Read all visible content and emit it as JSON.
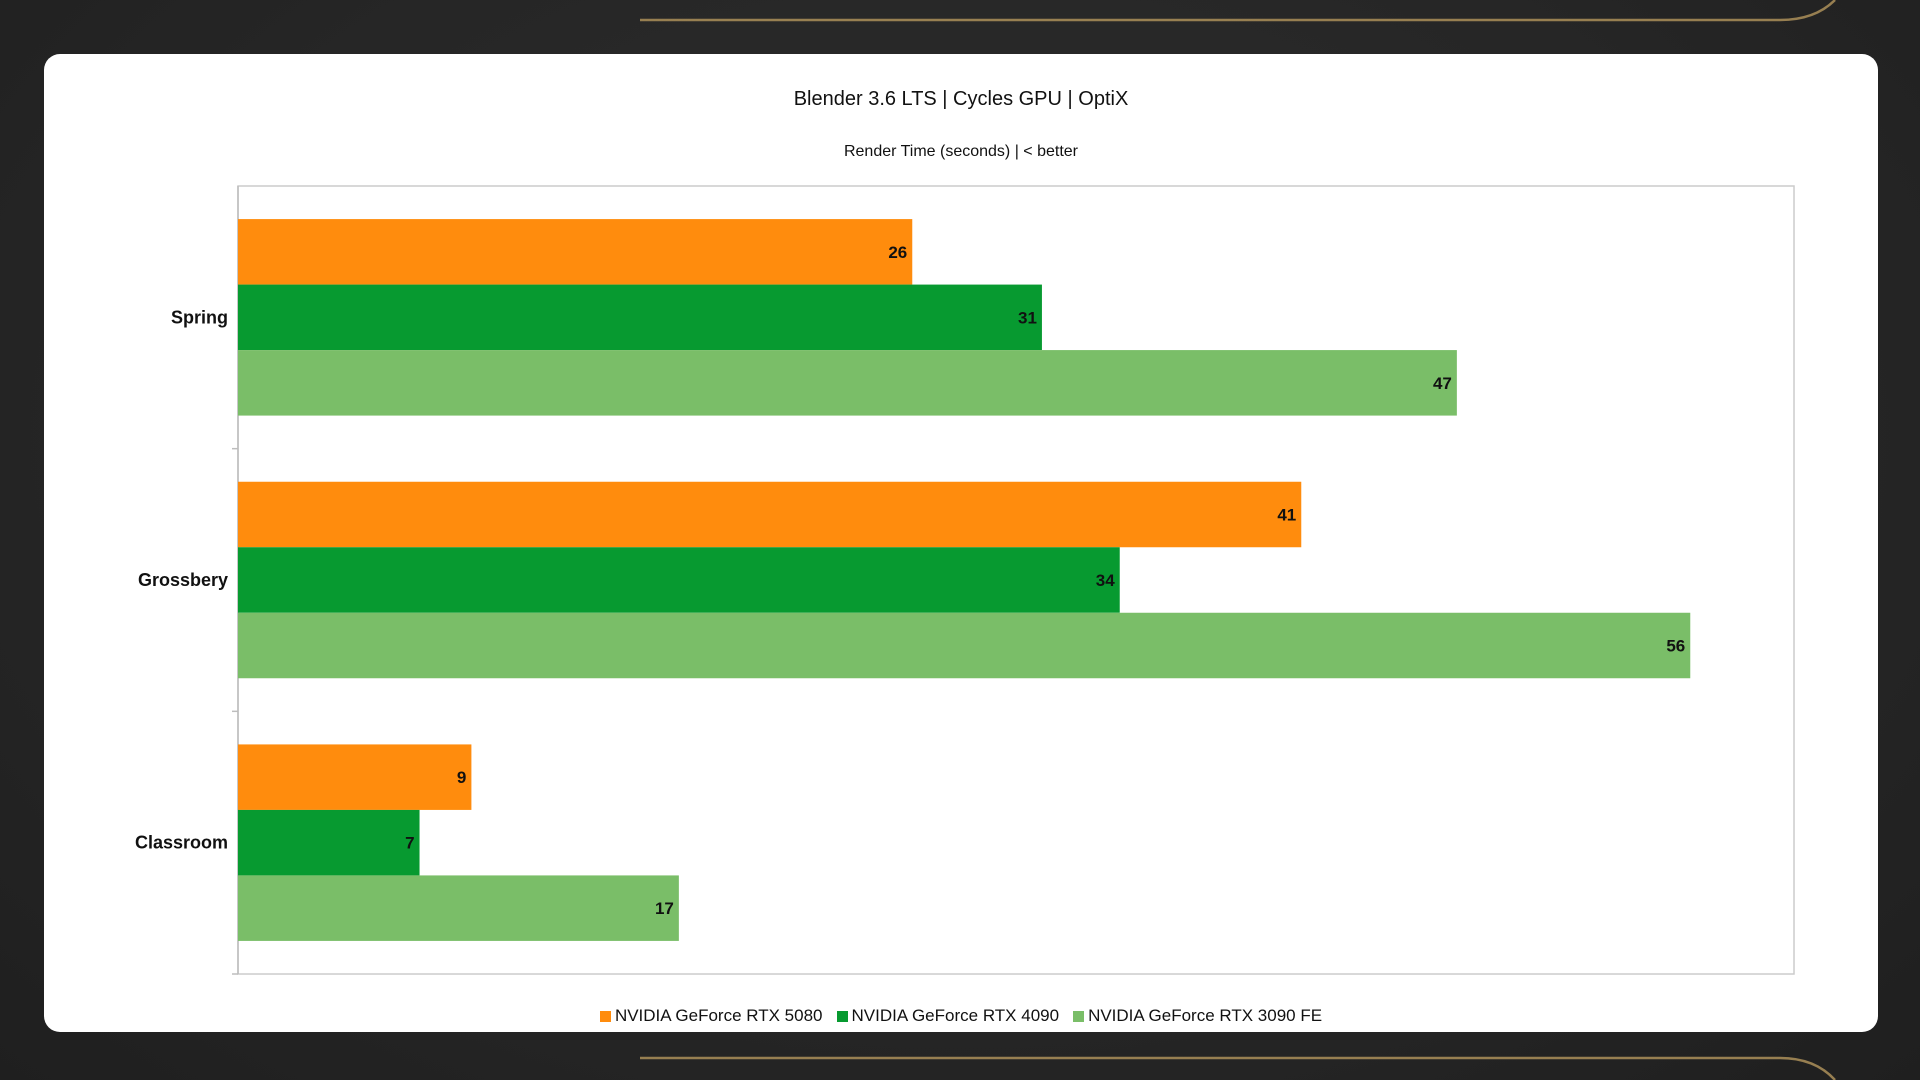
{
  "colors": {
    "background": "#262626",
    "accent_gold": "#a48a57"
  },
  "chart_data": {
    "type": "bar",
    "orientation": "horizontal",
    "title": "Blender 3.6 LTS | Cycles GPU | OptiX",
    "subtitle": "Render Time (seconds) | < better",
    "categories": [
      "Spring",
      "Grossbery",
      "Classroom"
    ],
    "series": [
      {
        "name": "NVIDIA GeForce RTX 5080",
        "color": "#ff8c0d",
        "values": [
          26,
          41,
          9
        ]
      },
      {
        "name": "NVIDIA GeForce RTX 4090",
        "color": "#079a30",
        "values": [
          31,
          34,
          7
        ]
      },
      {
        "name": "NVIDIA GeForce RTX 3090 FE",
        "color": "#7abe68",
        "values": [
          47,
          56,
          17
        ]
      }
    ],
    "xlim": [
      0,
      60
    ],
    "data_labels": true,
    "grid": false,
    "legend_position": "bottom"
  }
}
